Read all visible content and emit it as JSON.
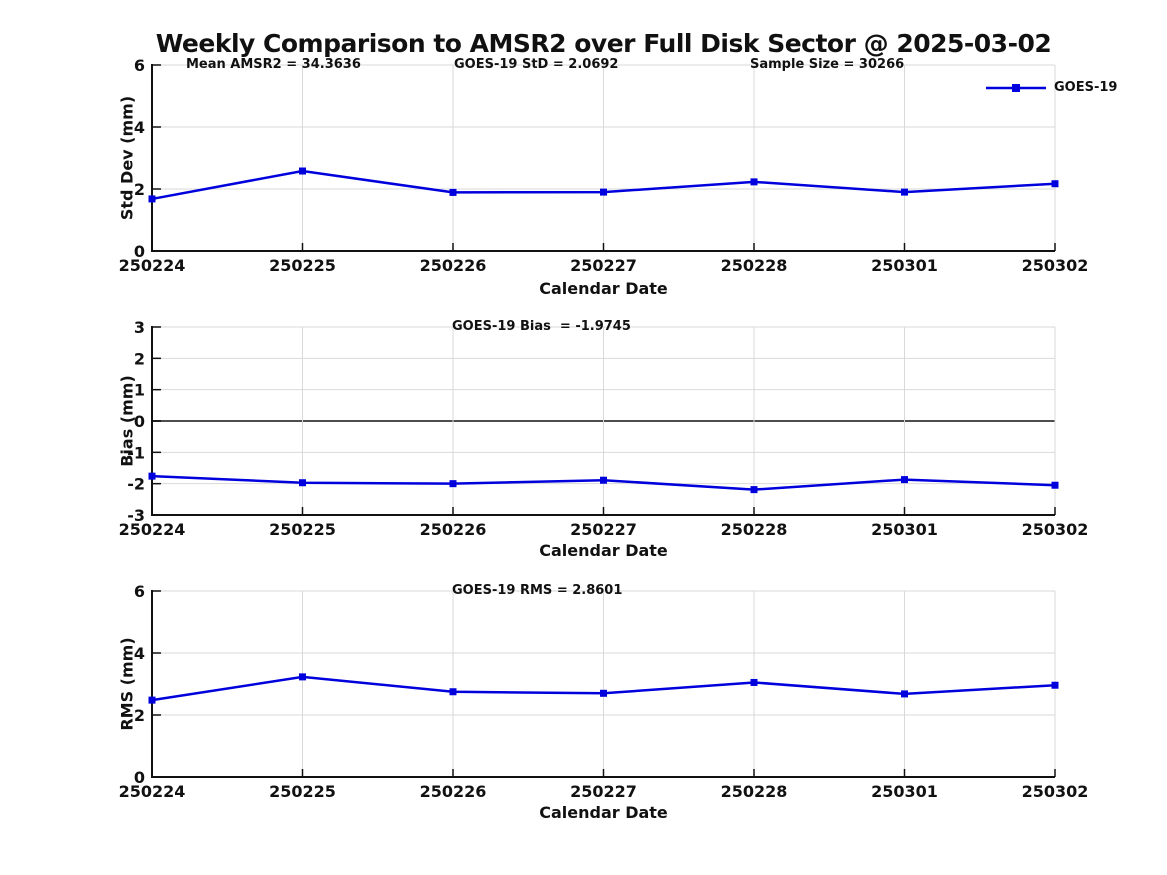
{
  "title": "Weekly Comparison to AMSR2 over Full Disk Sector @ 2025-03-02",
  "legend": {
    "label": "GOES-19"
  },
  "colors": {
    "line": "#0000dd",
    "grid": "#d9d9d9",
    "axis": "#111111",
    "zero_line": "#4d4d4d",
    "text": "#111111"
  },
  "chart_data": [
    {
      "type": "line",
      "title": "",
      "xlabel": "Calendar Date",
      "ylabel": "Std Dev (mm)",
      "categories": [
        "250224",
        "250225",
        "250226",
        "250227",
        "250228",
        "250301",
        "250302"
      ],
      "series": [
        {
          "name": "GOES-19",
          "values": [
            1.68,
            2.58,
            1.89,
            1.9,
            2.23,
            1.9,
            2.17
          ]
        }
      ],
      "ylim": [
        0,
        6
      ],
      "yticks": [
        0,
        2,
        4,
        6
      ],
      "grid": true,
      "zero_line": false,
      "marker": "square",
      "legend_position": "top-right-outside",
      "annotations": [
        {
          "text": "Mean AMSR2 = 34.3636"
        },
        {
          "text": "GOES-19 StD = 2.0692"
        },
        {
          "text": "Sample Size = 30266"
        }
      ],
      "stats": {
        "mean_amsr2": 34.3636,
        "goes19_std": 2.0692,
        "sample_size": 30266
      }
    },
    {
      "type": "line",
      "title": "",
      "xlabel": "Calendar Date",
      "ylabel": "Bias (mm)",
      "categories": [
        "250224",
        "250225",
        "250226",
        "250227",
        "250228",
        "250301",
        "250302"
      ],
      "series": [
        {
          "name": "GOES-19",
          "values": [
            -1.76,
            -1.97,
            -2.0,
            -1.89,
            -2.19,
            -1.87,
            -2.05
          ]
        }
      ],
      "ylim": [
        -3,
        3
      ],
      "yticks": [
        -3,
        -2,
        -1,
        0,
        1,
        2,
        3
      ],
      "grid": true,
      "zero_line": true,
      "marker": "square",
      "annotations": [
        {
          "text": "GOES-19 Bias  = -1.9745"
        }
      ],
      "stats": {
        "goes19_bias": -1.9745
      }
    },
    {
      "type": "line",
      "title": "",
      "xlabel": "Calendar Date",
      "ylabel": "RMS (mm)",
      "categories": [
        "250224",
        "250225",
        "250226",
        "250227",
        "250228",
        "250301",
        "250302"
      ],
      "series": [
        {
          "name": "GOES-19",
          "values": [
            2.48,
            3.23,
            2.75,
            2.7,
            3.05,
            2.68,
            2.96
          ]
        }
      ],
      "ylim": [
        0,
        6
      ],
      "yticks": [
        0,
        2,
        4,
        6
      ],
      "grid": true,
      "zero_line": false,
      "marker": "square",
      "annotations": [
        {
          "text": "GOES-19 RMS = 2.8601"
        }
      ],
      "stats": {
        "goes19_rms": 2.8601
      }
    }
  ]
}
